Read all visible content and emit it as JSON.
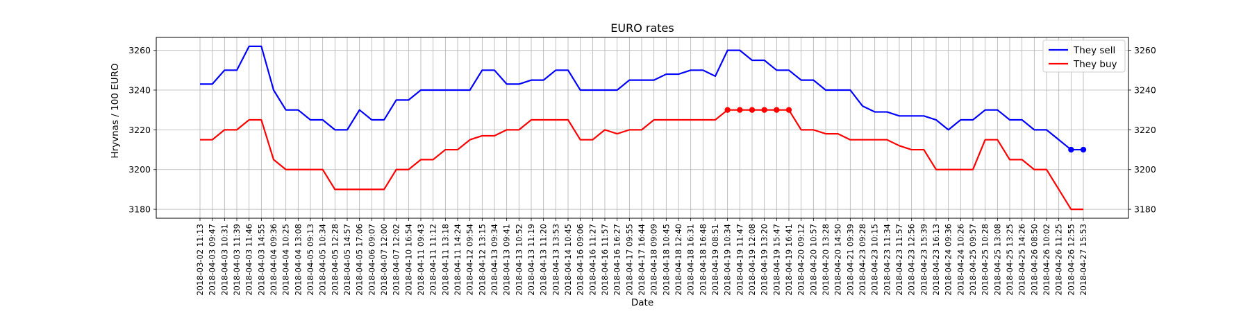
{
  "chart_data": {
    "type": "line",
    "title": "EURO rates",
    "xlabel": "Date",
    "ylabel": "Hryvnas / 100 EURO",
    "ylim": [
      3175.5,
      3266.5
    ],
    "yticks": [
      3180,
      3200,
      3220,
      3240,
      3260
    ],
    "grid": true,
    "legend_position": "top-right",
    "secondary_y_axis": true,
    "x": [
      "2018-03-02 11:13",
      "2018-04-03 09:47",
      "2018-04-03 10:31",
      "2018-04-03 11:39",
      "2018-04-03 11:46",
      "2018-04-03 14:55",
      "2018-04-04 09:36",
      "2018-04-04 10:25",
      "2018-04-04 13:08",
      "2018-04-05 09:13",
      "2018-04-05 10:34",
      "2018-04-05 12:28",
      "2018-04-05 14:57",
      "2018-04-05 17:06",
      "2018-04-06 09:07",
      "2018-04-07 12:00",
      "2018-04-07 12:02",
      "2018-04-10 16:54",
      "2018-04-11 09:43",
      "2018-04-11 11:12",
      "2018-04-11 13:18",
      "2018-04-11 14:24",
      "2018-04-12 09:54",
      "2018-04-12 13:15",
      "2018-04-13 09:34",
      "2018-04-13 09:41",
      "2018-04-13 10:52",
      "2018-04-13 11:19",
      "2018-04-13 11:20",
      "2018-04-13 13:53",
      "2018-04-14 10:45",
      "2018-04-16 09:06",
      "2018-04-16 11:27",
      "2018-04-16 11:57",
      "2018-04-16 16:27",
      "2018-04-17 09:55",
      "2018-04-17 16:44",
      "2018-04-18 09:09",
      "2018-04-18 10:45",
      "2018-04-18 12:40",
      "2018-04-18 16:31",
      "2018-04-18 16:48",
      "2018-04-19 08:51",
      "2018-04-19 10:34",
      "2018-04-19 11:47",
      "2018-04-19 12:08",
      "2018-04-19 13:20",
      "2018-04-19 15:47",
      "2018-04-19 16:41",
      "2018-04-20 09:12",
      "2018-04-20 10:57",
      "2018-04-20 13:28",
      "2018-04-20 14:50",
      "2018-04-21 09:39",
      "2018-04-23 09:28",
      "2018-04-23 10:15",
      "2018-04-23 11:34",
      "2018-04-23 11:57",
      "2018-04-23 12:56",
      "2018-04-23 15:39",
      "2018-04-23 16:13",
      "2018-04-24 09:36",
      "2018-04-24 10:26",
      "2018-04-25 09:57",
      "2018-04-25 10:28",
      "2018-04-25 13:08",
      "2018-04-25 13:25",
      "2018-04-25 14:26",
      "2018-04-26 08:50",
      "2018-04-26 10:02",
      "2018-04-26 11:25",
      "2018-04-26 12:55",
      "2018-04-27 15:53"
    ],
    "series": [
      {
        "name": "They sell",
        "color": "#0000ff",
        "values": [
          3243,
          3243,
          3250,
          3250,
          3262,
          3262,
          3240,
          3230,
          3230,
          3225,
          3225,
          3220,
          3220,
          3230,
          3225,
          3225,
          3235,
          3235,
          3240,
          3240,
          3240,
          3240,
          3240,
          3250,
          3250,
          3243,
          3243,
          3245,
          3245,
          3250,
          3250,
          3240,
          3240,
          3240,
          3240,
          3245,
          3245,
          3245,
          3248,
          3248,
          3250,
          3250,
          3247,
          3260,
          3260,
          3255,
          3255,
          3250,
          3250,
          3245,
          3245,
          3240,
          3240,
          3240,
          3232,
          3229,
          3229,
          3227,
          3227,
          3227,
          3225,
          3220,
          3225,
          3225,
          3230,
          3230,
          3225,
          3225,
          3220,
          3220,
          3215,
          3210,
          3210
        ],
        "markers_at": [
          71,
          72
        ]
      },
      {
        "name": "They buy",
        "color": "#ff0000",
        "values": [
          3215,
          3215,
          3220,
          3220,
          3225,
          3225,
          3205,
          3200,
          3200,
          3200,
          3200,
          3190,
          3190,
          3190,
          3190,
          3190,
          3200,
          3200,
          3205,
          3205,
          3210,
          3210,
          3215,
          3217,
          3217,
          3220,
          3220,
          3225,
          3225,
          3225,
          3225,
          3215,
          3215,
          3220,
          3218,
          3220,
          3220,
          3225,
          3225,
          3225,
          3225,
          3225,
          3225,
          3230,
          3230,
          3230,
          3230,
          3230,
          3230,
          3220,
          3220,
          3218,
          3218,
          3215,
          3215,
          3215,
          3215,
          3212,
          3210,
          3210,
          3200,
          3200,
          3200,
          3200,
          3215,
          3215,
          3205,
          3205,
          3200,
          3200,
          3190,
          3180,
          3180
        ],
        "markers_at": [
          43,
          44,
          45,
          46,
          47,
          48
        ]
      }
    ]
  }
}
